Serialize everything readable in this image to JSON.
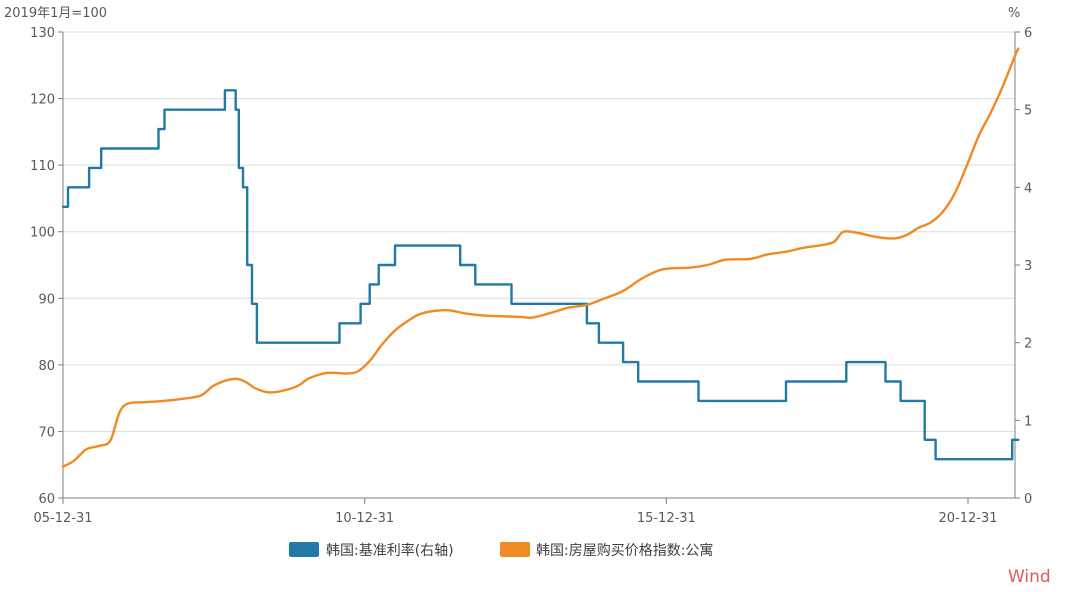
{
  "chart_data": {
    "type": "line",
    "left_axis": {
      "unit": "2019年1月=100",
      "min": 60,
      "max": 130,
      "ticks": [
        60,
        70,
        80,
        90,
        100,
        110,
        120,
        130
      ]
    },
    "right_axis": {
      "unit": "%",
      "min": 0,
      "max": 6,
      "ticks": [
        0,
        1,
        2,
        3,
        4,
        5,
        6
      ]
    },
    "x_axis": {
      "min": 2005.917,
      "max": 2021.5,
      "ticks": [
        {
          "x": 2005.917,
          "label": "05-12-31"
        },
        {
          "x": 2010.917,
          "label": "10-12-31"
        },
        {
          "x": 2015.917,
          "label": "15-12-31"
        },
        {
          "x": 2020.917,
          "label": "20-12-31"
        }
      ]
    },
    "grid": true,
    "legend": "bottom",
    "series": [
      {
        "name": "韩国:基准利率(右轴)",
        "axis": "right",
        "color": "#2379a6",
        "shape": "step",
        "points": [
          [
            2005.917,
            3.75
          ],
          [
            2006.0,
            3.75
          ],
          [
            2006.0,
            4.0
          ],
          [
            2006.35,
            4.0
          ],
          [
            2006.35,
            4.25
          ],
          [
            2006.55,
            4.25
          ],
          [
            2006.55,
            4.5
          ],
          [
            2007.5,
            4.5
          ],
          [
            2007.5,
            4.75
          ],
          [
            2007.6,
            4.75
          ],
          [
            2007.6,
            5.0
          ],
          [
            2008.6,
            5.0
          ],
          [
            2008.6,
            5.25
          ],
          [
            2008.78,
            5.25
          ],
          [
            2008.78,
            5.0
          ],
          [
            2008.83,
            5.0
          ],
          [
            2008.83,
            4.25
          ],
          [
            2008.9,
            4.25
          ],
          [
            2008.9,
            4.0
          ],
          [
            2008.97,
            4.0
          ],
          [
            2008.97,
            3.0
          ],
          [
            2009.05,
            3.0
          ],
          [
            2009.05,
            2.5
          ],
          [
            2009.13,
            2.5
          ],
          [
            2009.13,
            2.0
          ],
          [
            2010.5,
            2.0
          ],
          [
            2010.5,
            2.25
          ],
          [
            2010.85,
            2.25
          ],
          [
            2010.85,
            2.5
          ],
          [
            2011.0,
            2.5
          ],
          [
            2011.0,
            2.75
          ],
          [
            2011.15,
            2.75
          ],
          [
            2011.15,
            3.0
          ],
          [
            2011.42,
            3.0
          ],
          [
            2011.42,
            3.25
          ],
          [
            2012.5,
            3.25
          ],
          [
            2012.5,
            3.0
          ],
          [
            2012.75,
            3.0
          ],
          [
            2012.75,
            2.75
          ],
          [
            2013.35,
            2.75
          ],
          [
            2013.35,
            2.5
          ],
          [
            2014.6,
            2.5
          ],
          [
            2014.6,
            2.25
          ],
          [
            2014.8,
            2.25
          ],
          [
            2014.8,
            2.0
          ],
          [
            2015.2,
            2.0
          ],
          [
            2015.2,
            1.75
          ],
          [
            2015.45,
            1.75
          ],
          [
            2015.45,
            1.5
          ],
          [
            2016.45,
            1.5
          ],
          [
            2016.45,
            1.25
          ],
          [
            2017.9,
            1.25
          ],
          [
            2017.9,
            1.5
          ],
          [
            2018.9,
            1.5
          ],
          [
            2018.9,
            1.75
          ],
          [
            2019.55,
            1.75
          ],
          [
            2019.55,
            1.5
          ],
          [
            2019.8,
            1.5
          ],
          [
            2019.8,
            1.25
          ],
          [
            2020.2,
            1.25
          ],
          [
            2020.2,
            0.75
          ],
          [
            2020.38,
            0.75
          ],
          [
            2020.38,
            0.5
          ],
          [
            2021.65,
            0.5
          ],
          [
            2021.65,
            0.75
          ],
          [
            2021.75,
            0.75
          ]
        ]
      },
      {
        "name": "韩国:房屋购买价格指数:公寓",
        "axis": "left",
        "color": "#f08a24",
        "shape": "smooth",
        "points": [
          [
            2005.917,
            64.7
          ],
          [
            2006.1,
            65.6
          ],
          [
            2006.3,
            67.3
          ],
          [
            2006.5,
            67.8
          ],
          [
            2006.7,
            68.6
          ],
          [
            2006.85,
            72.8
          ],
          [
            2007.0,
            74.2
          ],
          [
            2007.3,
            74.4
          ],
          [
            2007.6,
            74.6
          ],
          [
            2007.9,
            74.9
          ],
          [
            2008.2,
            75.4
          ],
          [
            2008.4,
            76.8
          ],
          [
            2008.6,
            77.6
          ],
          [
            2008.8,
            77.9
          ],
          [
            2008.95,
            77.4
          ],
          [
            2009.1,
            76.5
          ],
          [
            2009.3,
            75.9
          ],
          [
            2009.5,
            76.0
          ],
          [
            2009.8,
            76.8
          ],
          [
            2010.0,
            78.0
          ],
          [
            2010.3,
            78.8
          ],
          [
            2010.6,
            78.7
          ],
          [
            2010.8,
            79.0
          ],
          [
            2011.0,
            80.6
          ],
          [
            2011.2,
            83.0
          ],
          [
            2011.4,
            85.0
          ],
          [
            2011.6,
            86.4
          ],
          [
            2011.8,
            87.5
          ],
          [
            2012.0,
            88.0
          ],
          [
            2012.3,
            88.2
          ],
          [
            2012.6,
            87.7
          ],
          [
            2012.9,
            87.4
          ],
          [
            2013.2,
            87.3
          ],
          [
            2013.5,
            87.2
          ],
          [
            2013.7,
            87.1
          ],
          [
            2014.0,
            87.8
          ],
          [
            2014.3,
            88.6
          ],
          [
            2014.6,
            89.0
          ],
          [
            2014.9,
            90.0
          ],
          [
            2015.2,
            91.1
          ],
          [
            2015.5,
            92.9
          ],
          [
            2015.8,
            94.2
          ],
          [
            2016.0,
            94.5
          ],
          [
            2016.3,
            94.6
          ],
          [
            2016.6,
            95.0
          ],
          [
            2016.9,
            95.8
          ],
          [
            2017.3,
            95.9
          ],
          [
            2017.6,
            96.6
          ],
          [
            2017.9,
            97.0
          ],
          [
            2018.2,
            97.6
          ],
          [
            2018.5,
            98.0
          ],
          [
            2018.7,
            98.5
          ],
          [
            2018.85,
            100.0
          ],
          [
            2019.1,
            99.8
          ],
          [
            2019.4,
            99.2
          ],
          [
            2019.7,
            99.0
          ],
          [
            2019.9,
            99.5
          ],
          [
            2020.1,
            100.6
          ],
          [
            2020.3,
            101.4
          ],
          [
            2020.5,
            103.0
          ],
          [
            2020.7,
            105.8
          ],
          [
            2020.9,
            110.0
          ],
          [
            2021.1,
            114.5
          ],
          [
            2021.3,
            118.0
          ],
          [
            2021.5,
            122.0
          ],
          [
            2021.7,
            126.5
          ],
          [
            2021.75,
            127.5
          ]
        ]
      }
    ]
  },
  "watermark": "Wind"
}
